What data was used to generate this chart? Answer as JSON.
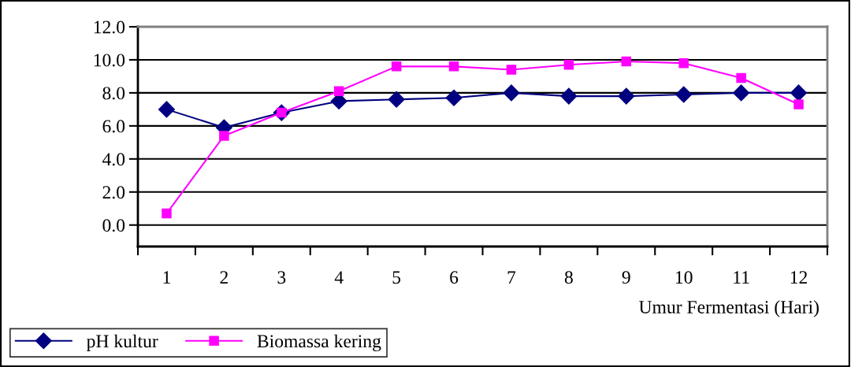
{
  "chart_data": {
    "type": "line",
    "xlabel": "Umur Fermentasi (Hari)",
    "categories": [
      "1",
      "2",
      "3",
      "4",
      "5",
      "6",
      "7",
      "8",
      "9",
      "10",
      "11",
      "12"
    ],
    "series": [
      {
        "name": "pH kultur",
        "color": "#000080",
        "marker": "diamond",
        "values": [
          7.0,
          5.9,
          6.8,
          7.5,
          7.6,
          7.7,
          8.0,
          7.8,
          7.8,
          7.9,
          8.0,
          8.0
        ]
      },
      {
        "name": "Biomassa kering",
        "color": "#ff00ff",
        "marker": "square",
        "values": [
          0.7,
          5.4,
          6.8,
          8.1,
          9.6,
          9.6,
          9.4,
          9.7,
          9.9,
          9.8,
          8.9,
          7.3
        ]
      }
    ],
    "ylim": [
      -1.3,
      12.0
    ],
    "yticks": [
      {
        "value": 0,
        "label": "0.0"
      },
      {
        "value": 2,
        "label": "2.0"
      },
      {
        "value": 4,
        "label": "4.0"
      },
      {
        "value": 6,
        "label": "6.0"
      },
      {
        "value": 8,
        "label": "8.0"
      },
      {
        "value": 10,
        "label": "10.0"
      },
      {
        "value": 12,
        "label": "12.0"
      }
    ],
    "grid": "y",
    "legend": "bottom left",
    "line_style": "solid"
  }
}
